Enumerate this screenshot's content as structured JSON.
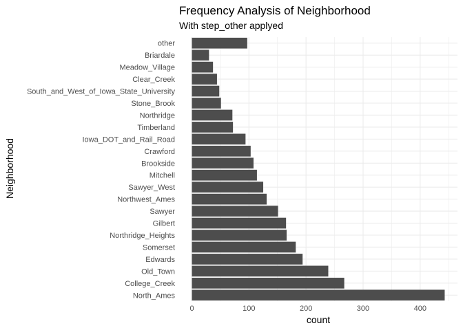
{
  "chart_data": {
    "type": "bar",
    "orientation": "horizontal",
    "title": "Frequency Analysis of Neighborhood",
    "subtitle": "With step_other applyed",
    "xlabel": "count",
    "ylabel": "Neighborhood",
    "xlim": [
      0,
      460
    ],
    "x_ticks": [
      "0",
      "100",
      "200",
      "300",
      "400"
    ],
    "grid": true,
    "bar_color": "#4d4d4d",
    "grid_color": "#ebebeb",
    "categories": [
      "North_Ames",
      "College_Creek",
      "Old_Town",
      "Edwards",
      "Somerset",
      "Northridge_Heights",
      "Gilbert",
      "Sawyer",
      "Northwest_Ames",
      "Sawyer_West",
      "Mitchell",
      "Brookside",
      "Crawford",
      "Iowa_DOT_and_Rail_Road",
      "Timberland",
      "Northridge",
      "Stone_Brook",
      "South_and_West_of_Iowa_State_University",
      "Clear_Creek",
      "Meadow_Village",
      "Briardale",
      "other"
    ],
    "values": [
      443,
      267,
      239,
      194,
      182,
      166,
      165,
      151,
      131,
      125,
      114,
      108,
      103,
      94,
      72,
      71,
      51,
      48,
      44,
      37,
      30,
      97
    ]
  }
}
